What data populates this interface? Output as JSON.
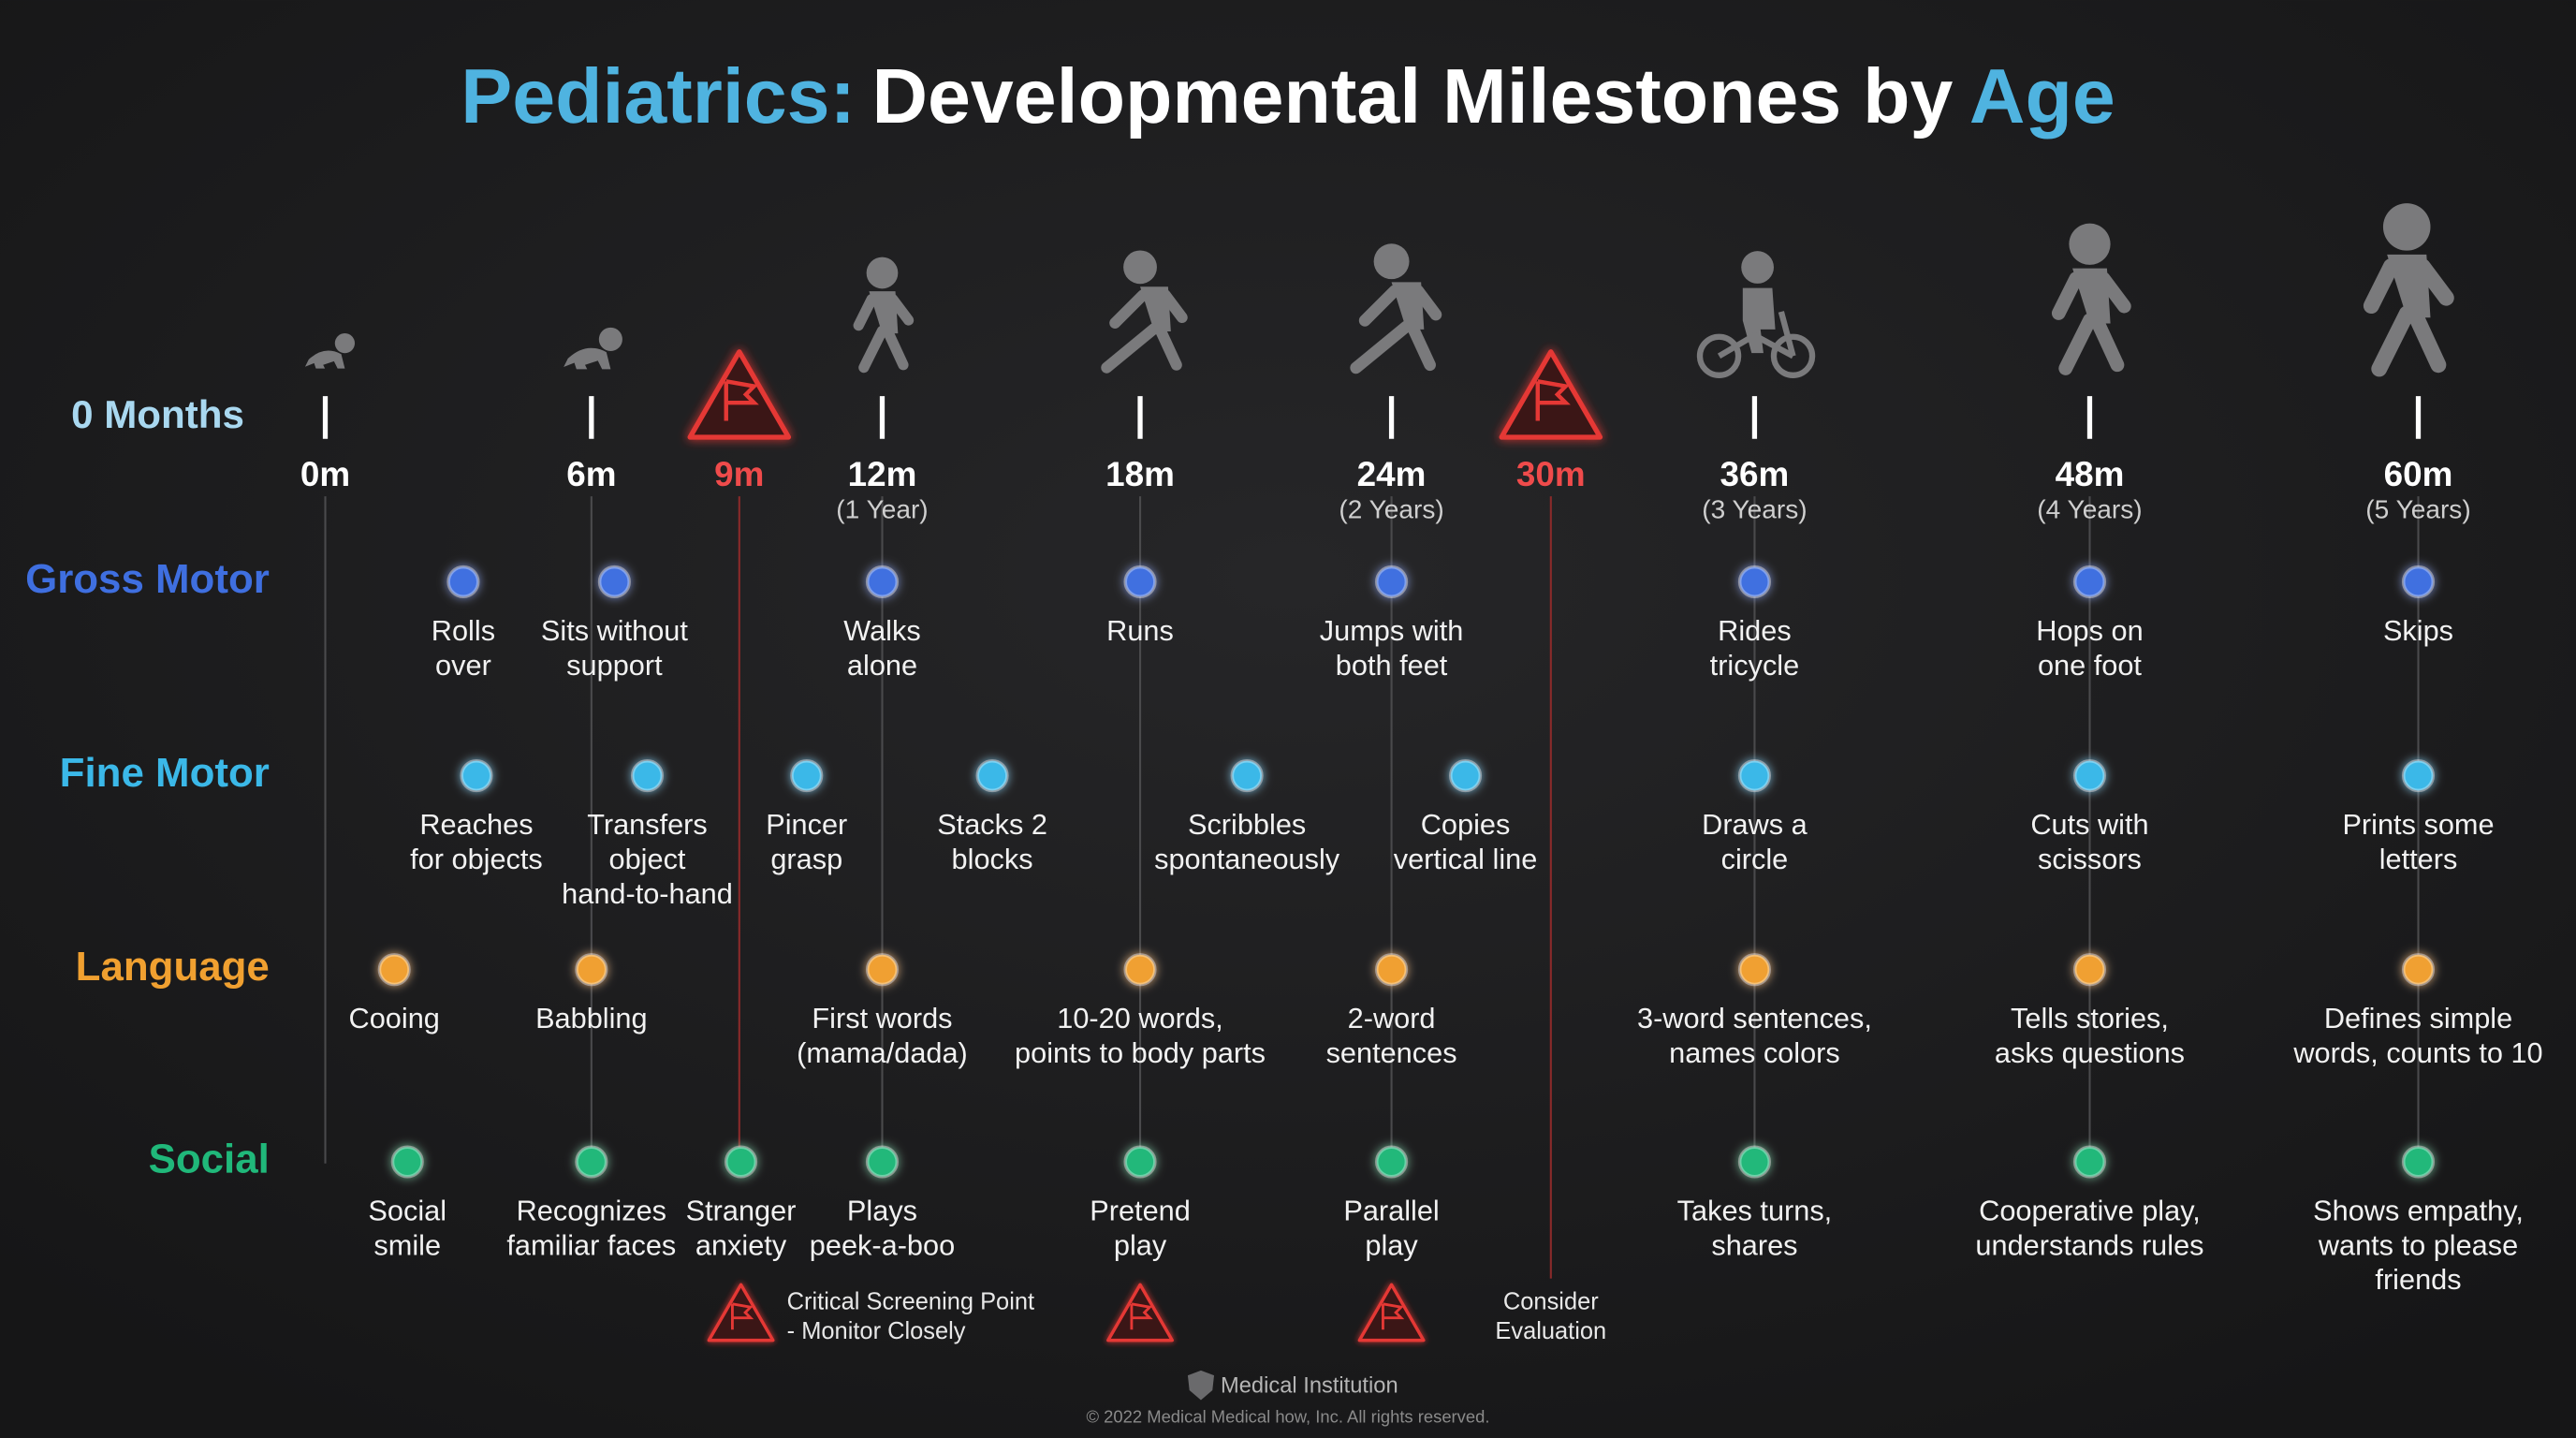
{
  "title": {
    "lead": "Pediatrics:",
    "middle": "Developmental Milestones by",
    "tail": "Age"
  },
  "timeline": {
    "start_label": "0 Months",
    "ticks": [
      {
        "label": "0m"
      },
      {
        "label": "6m"
      },
      {
        "label": "9m"
      },
      {
        "label": "12m",
        "sub": "(1 Year)"
      },
      {
        "label": "18m"
      },
      {
        "label": "24m",
        "sub": "(2 Years)"
      },
      {
        "label": "30m"
      },
      {
        "label": "36m",
        "sub": "(3 Years)"
      },
      {
        "label": "48m",
        "sub": "(4 Years)"
      },
      {
        "label": "60m",
        "sub": "(5 Years)"
      }
    ]
  },
  "rows": [
    {
      "name": "Gross Motor",
      "milestones": [
        [
          "Rolls",
          "over"
        ],
        [
          "Sits without",
          "support"
        ],
        [
          "Walks",
          "alone"
        ],
        [
          "Runs"
        ],
        [
          "Jumps with",
          "both feet"
        ],
        [
          "Rides",
          "tricycle"
        ],
        [
          "Hops on",
          "one foot"
        ],
        [
          "Skips"
        ]
      ]
    },
    {
      "name": "Fine Motor",
      "milestones": [
        [
          "Reaches",
          "for objects"
        ],
        [
          "Transfers",
          "object",
          "hand-to-hand"
        ],
        [
          "Pincer",
          "grasp"
        ],
        [
          "Stacks 2",
          "blocks"
        ],
        [
          "Scribbles",
          "spontaneously"
        ],
        [
          "Copies",
          "vertical line"
        ],
        [
          "Draws a",
          "circle"
        ],
        [
          "Cuts with",
          "scissors"
        ],
        [
          "Prints some",
          "letters"
        ]
      ]
    },
    {
      "name": "Language",
      "milestones": [
        [
          "Cooing"
        ],
        [
          "Babbling"
        ],
        [
          "First words",
          "(mama/dada)"
        ],
        [
          "10-20 words,",
          "points to body parts"
        ],
        [
          "2-word",
          "sentences"
        ],
        [
          "3-word sentences,",
          "names colors"
        ],
        [
          "Tells stories,",
          "asks questions"
        ],
        [
          "Defines simple",
          "words, counts to 10"
        ]
      ]
    },
    {
      "name": "Social",
      "milestones": [
        [
          "Social",
          "smile"
        ],
        [
          "Recognizes",
          "familiar faces"
        ],
        [
          "Stranger",
          "anxiety"
        ],
        [
          "Plays",
          "peek-a-boo"
        ],
        [
          "Pretend",
          "play"
        ],
        [
          "Parallel",
          "play"
        ],
        [
          "Takes turns,",
          "shares"
        ],
        [
          "Cooperative play,",
          "understands rules"
        ],
        [
          "Shows empathy,",
          "wants to please",
          "friends"
        ]
      ]
    }
  ],
  "legend": {
    "critical": [
      "Critical Screening Point",
      "- Monitor Closely"
    ],
    "evaluate": [
      "Consider",
      "Evaluation"
    ]
  },
  "footer": {
    "institution": "Medical Institution",
    "copyright": "© 2022 Medical Medical how, Inc. All rights reserved."
  }
}
